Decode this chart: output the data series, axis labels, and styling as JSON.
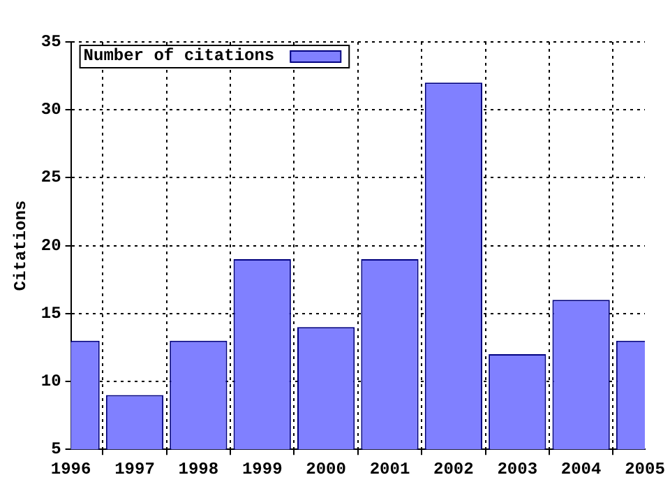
{
  "chart_data": {
    "type": "bar",
    "ylabel": "Citations",
    "x": [
      1996,
      1997,
      1998,
      1999,
      2000,
      2001,
      2002,
      2003,
      2004,
      2005
    ],
    "series": [
      {
        "name": "Number of citations",
        "color": "#8080ff",
        "values": [
          13,
          9,
          13,
          19,
          14,
          19,
          32,
          12,
          16,
          13
        ]
      }
    ],
    "xlim": [
      1996,
      2005
    ],
    "xticks": [
      1996,
      1997,
      1998,
      1999,
      2000,
      2001,
      2002,
      2003,
      2004,
      2005
    ],
    "ylim": [
      5,
      35
    ],
    "yticks": [
      5,
      10,
      15,
      20,
      25,
      30,
      35
    ],
    "grid": true,
    "legend": "top left"
  }
}
